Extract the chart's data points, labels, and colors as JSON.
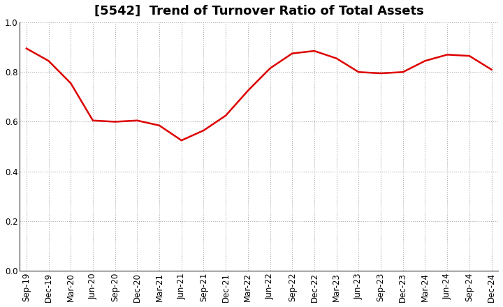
{
  "title": "[5542]  Trend of Turnover Ratio of Total Assets",
  "x_labels": [
    "Sep-19",
    "Dec-19",
    "Mar-20",
    "Jun-20",
    "Sep-20",
    "Dec-20",
    "Mar-21",
    "Jun-21",
    "Sep-21",
    "Dec-21",
    "Mar-22",
    "Jun-22",
    "Sep-22",
    "Dec-22",
    "Mar-23",
    "Jun-23",
    "Sep-23",
    "Dec-23",
    "Mar-24",
    "Jun-24",
    "Sep-24",
    "Dec-24"
  ],
  "y_values": [
    0.895,
    0.845,
    0.755,
    0.605,
    0.6,
    0.605,
    0.585,
    0.525,
    0.565,
    0.625,
    0.725,
    0.815,
    0.875,
    0.885,
    0.855,
    0.8,
    0.795,
    0.8,
    0.845,
    0.87,
    0.865,
    0.81
  ],
  "line_color": "#dd0000",
  "ylim": [
    0.0,
    1.0
  ],
  "yticks": [
    0.0,
    0.2,
    0.4,
    0.6,
    0.8,
    1.0
  ],
  "background_color": "#ffffff",
  "grid_color": "#aaaaaa",
  "title_fontsize": 13,
  "tick_fontsize": 8.5
}
